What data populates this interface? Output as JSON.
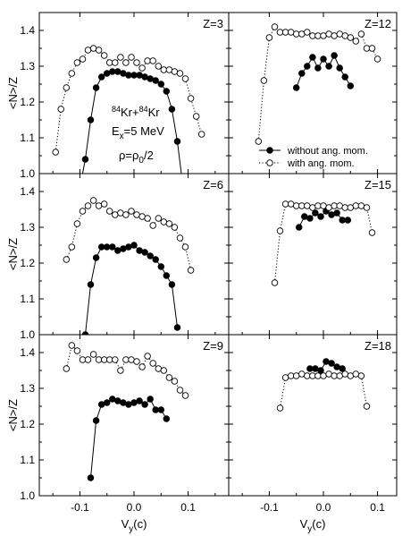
{
  "figure": {
    "reaction": {
      "sup1": "84",
      "el1": "Kr+",
      "sup2": "84",
      "el2": "Kr"
    },
    "excitation": {
      "main": "E",
      "sub": "x",
      "rest": "=5 MeV"
    },
    "density": {
      "main": "ρ=ρ",
      "sub": "0",
      "rest": "/2"
    },
    "legend": [
      {
        "label": "without ang. mom.",
        "style": "solid-filled"
      },
      {
        "label": "with ang. mom.",
        "style": "dotted-open"
      }
    ]
  },
  "axes": {
    "ylabel": "<N>/Z",
    "xlabel_main": "V",
    "xlabel_sub": "y",
    "xlabel_rest": "(c)",
    "xlim": [
      -0.175,
      0.175
    ],
    "ylim": [
      1.0,
      1.45
    ],
    "xticks": [
      -0.1,
      0.0,
      0.1
    ],
    "xtick_labels": [
      "-0.1",
      "0.0",
      "0.1"
    ],
    "yticks": [
      1.0,
      1.1,
      1.2,
      1.3,
      1.4
    ],
    "ytick_labels": [
      "1.0",
      "1.1",
      "1.2",
      "1.3",
      "1.4"
    ]
  },
  "colors": {
    "ink": "#000000",
    "background": "#ffffff"
  },
  "chart_data": [
    {
      "type": "line",
      "panel": "Z=3",
      "series": [
        {
          "name": "without ang. mom.",
          "style": "solid-filled",
          "x": [
            -0.1,
            -0.09,
            -0.08,
            -0.07,
            -0.06,
            -0.05,
            -0.04,
            -0.03,
            -0.02,
            -0.01,
            0.0,
            0.01,
            0.02,
            0.03,
            0.04,
            0.05,
            0.06,
            0.07,
            0.08,
            0.09
          ],
          "y": [
            0.96,
            1.04,
            1.15,
            1.24,
            1.27,
            1.28,
            1.285,
            1.285,
            1.28,
            1.275,
            1.275,
            1.275,
            1.27,
            1.265,
            1.26,
            1.25,
            1.23,
            1.18,
            1.09,
            0.97
          ]
        },
        {
          "name": "with ang. mom.",
          "style": "dotted-open",
          "x": [
            -0.145,
            -0.135,
            -0.125,
            -0.115,
            -0.105,
            -0.095,
            -0.085,
            -0.075,
            -0.065,
            -0.055,
            -0.045,
            -0.035,
            -0.025,
            -0.015,
            -0.005,
            0.005,
            0.015,
            0.025,
            0.035,
            0.045,
            0.055,
            0.065,
            0.075,
            0.085,
            0.095,
            0.105,
            0.115,
            0.125
          ],
          "y": [
            1.06,
            1.18,
            1.24,
            1.28,
            1.31,
            1.32,
            1.345,
            1.35,
            1.345,
            1.33,
            1.31,
            1.31,
            1.325,
            1.31,
            1.325,
            1.31,
            1.295,
            1.315,
            1.315,
            1.3,
            1.29,
            1.29,
            1.285,
            1.28,
            1.265,
            1.21,
            1.16,
            1.11
          ]
        }
      ]
    },
    {
      "type": "line",
      "panel": "Z=12",
      "series": [
        {
          "name": "without ang. mom.",
          "style": "solid-filled",
          "x": [
            -0.05,
            -0.04,
            -0.03,
            -0.02,
            -0.01,
            0.0,
            0.01,
            0.02,
            0.03,
            0.04,
            0.05
          ],
          "y": [
            1.24,
            1.28,
            1.3,
            1.325,
            1.295,
            1.32,
            1.3,
            1.33,
            1.295,
            1.27,
            1.245
          ]
        },
        {
          "name": "with ang. mom.",
          "style": "dotted-open",
          "x": [
            -0.12,
            -0.11,
            -0.1,
            -0.09,
            -0.08,
            -0.07,
            -0.06,
            -0.05,
            -0.04,
            -0.03,
            -0.02,
            -0.01,
            0.0,
            0.01,
            0.02,
            0.03,
            0.04,
            0.05,
            0.06,
            0.07,
            0.08,
            0.09,
            0.1
          ],
          "y": [
            1.09,
            1.26,
            1.38,
            1.41,
            1.395,
            1.395,
            1.395,
            1.39,
            1.39,
            1.395,
            1.385,
            1.385,
            1.385,
            1.39,
            1.385,
            1.39,
            1.385,
            1.38,
            1.37,
            1.39,
            1.35,
            1.35,
            1.32
          ]
        }
      ]
    },
    {
      "type": "line",
      "panel": "Z=6",
      "series": [
        {
          "name": "without ang. mom.",
          "style": "solid-filled",
          "x": [
            -0.09,
            -0.08,
            -0.07,
            -0.06,
            -0.05,
            -0.04,
            -0.03,
            -0.02,
            -0.01,
            0.0,
            0.01,
            0.02,
            0.03,
            0.04,
            0.05,
            0.06,
            0.07,
            0.08
          ],
          "y": [
            1.0,
            1.14,
            1.215,
            1.245,
            1.245,
            1.245,
            1.235,
            1.24,
            1.245,
            1.25,
            1.235,
            1.23,
            1.22,
            1.21,
            1.19,
            1.165,
            1.14,
            1.02
          ]
        },
        {
          "name": "with ang. mom.",
          "style": "dotted-open",
          "x": [
            -0.125,
            -0.115,
            -0.105,
            -0.095,
            -0.085,
            -0.075,
            -0.065,
            -0.055,
            -0.045,
            -0.035,
            -0.025,
            -0.015,
            -0.005,
            0.005,
            0.015,
            0.025,
            0.035,
            0.045,
            0.055,
            0.065,
            0.075,
            0.085,
            0.095,
            0.105
          ],
          "y": [
            1.21,
            1.245,
            1.31,
            1.345,
            1.36,
            1.375,
            1.36,
            1.365,
            1.345,
            1.335,
            1.34,
            1.335,
            1.345,
            1.335,
            1.33,
            1.325,
            1.305,
            1.325,
            1.315,
            1.31,
            1.3,
            1.27,
            1.245,
            1.18
          ]
        }
      ]
    },
    {
      "type": "line",
      "panel": "Z=15",
      "series": [
        {
          "name": "without ang. mom.",
          "style": "solid-filled",
          "x": [
            -0.045,
            -0.035,
            -0.025,
            -0.015,
            -0.005,
            0.005,
            0.015,
            0.025,
            0.035,
            0.045
          ],
          "y": [
            1.3,
            1.33,
            1.325,
            1.34,
            1.33,
            1.345,
            1.335,
            1.34,
            1.32,
            1.32
          ]
        },
        {
          "name": "with ang. mom.",
          "style": "dotted-open",
          "x": [
            -0.09,
            -0.08,
            -0.07,
            -0.06,
            -0.05,
            -0.04,
            -0.03,
            -0.02,
            -0.01,
            0.0,
            0.01,
            0.02,
            0.03,
            0.04,
            0.05,
            0.06,
            0.07,
            0.08,
            0.09
          ],
          "y": [
            1.145,
            1.29,
            1.365,
            1.365,
            1.36,
            1.36,
            1.36,
            1.355,
            1.36,
            1.36,
            1.355,
            1.36,
            1.36,
            1.355,
            1.355,
            1.36,
            1.36,
            1.355,
            1.285
          ]
        }
      ]
    },
    {
      "type": "line",
      "panel": "Z=9",
      "series": [
        {
          "name": "without ang. mom.",
          "style": "solid-filled",
          "x": [
            -0.08,
            -0.07,
            -0.06,
            -0.05,
            -0.04,
            -0.03,
            -0.02,
            -0.01,
            0.0,
            0.01,
            0.02,
            0.03,
            0.04,
            0.05,
            0.06
          ],
          "y": [
            1.05,
            1.21,
            1.255,
            1.26,
            1.27,
            1.265,
            1.26,
            1.255,
            1.26,
            1.265,
            1.255,
            1.27,
            1.24,
            1.24,
            1.215
          ]
        },
        {
          "name": "with ang. mom.",
          "style": "dotted-open",
          "x": [
            -0.125,
            -0.115,
            -0.105,
            -0.095,
            -0.085,
            -0.075,
            -0.065,
            -0.055,
            -0.045,
            -0.035,
            -0.025,
            -0.015,
            -0.005,
            0.005,
            0.015,
            0.025,
            0.035,
            0.045,
            0.055,
            0.065,
            0.075,
            0.085,
            0.095
          ],
          "y": [
            1.355,
            1.42,
            1.405,
            1.38,
            1.38,
            1.395,
            1.38,
            1.38,
            1.38,
            1.38,
            1.35,
            1.38,
            1.38,
            1.375,
            1.36,
            1.39,
            1.37,
            1.355,
            1.35,
            1.33,
            1.32,
            1.295,
            1.28
          ]
        }
      ]
    },
    {
      "type": "line",
      "panel": "Z=18",
      "series": [
        {
          "name": "without ang. mom.",
          "style": "solid-filled",
          "x": [
            -0.025,
            -0.015,
            -0.005,
            0.005,
            0.015,
            0.025,
            0.035
          ],
          "y": [
            1.355,
            1.355,
            1.35,
            1.375,
            1.37,
            1.36,
            1.355
          ]
        },
        {
          "name": "with ang. mom.",
          "style": "dotted-open",
          "x": [
            -0.08,
            -0.07,
            -0.06,
            -0.05,
            -0.04,
            -0.03,
            -0.02,
            -0.01,
            0.0,
            0.01,
            0.02,
            0.03,
            0.04,
            0.05,
            0.06,
            0.07,
            0.08
          ],
          "y": [
            1.245,
            1.33,
            1.335,
            1.335,
            1.34,
            1.335,
            1.335,
            1.335,
            1.335,
            1.34,
            1.335,
            1.335,
            1.34,
            1.335,
            1.34,
            1.335,
            1.25
          ]
        }
      ]
    }
  ]
}
